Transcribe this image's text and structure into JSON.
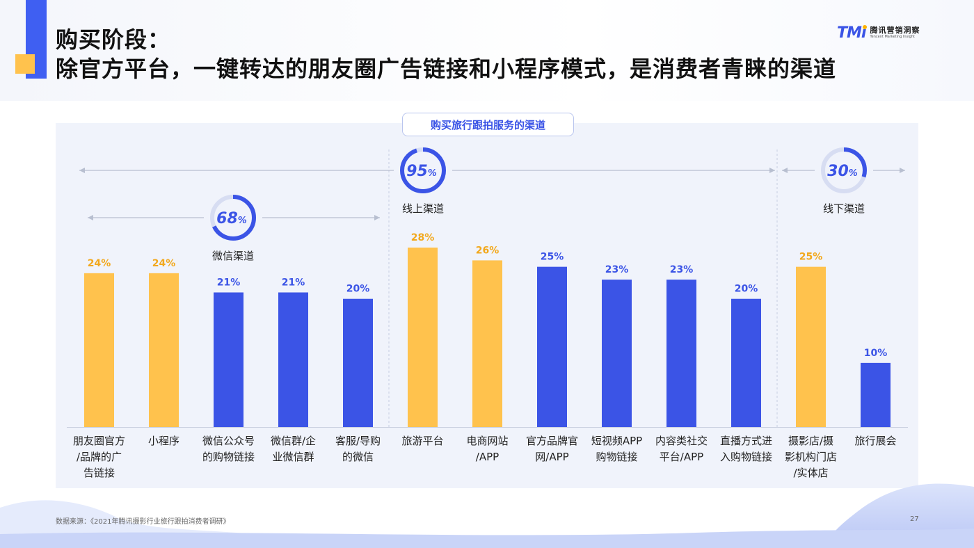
{
  "header": {
    "title_line1": "购买阶段：",
    "title_line2": "除官方平台，一键转达的朋友圈广告链接和小程序模式，是消费者青睐的渠道"
  },
  "logo": {
    "mark": "TMi",
    "name_cn": "腾讯营销洞察",
    "name_en": "Tencent Marketing Insight"
  },
  "chart_data": {
    "type": "bar",
    "title": "购买旅行跟拍服务的渠道",
    "categories": [
      "朋友圈官方/品牌的广告链接",
      "小程序",
      "微信公众号的购物链接",
      "微信群/企业微信群",
      "客服/导购的微信",
      "旅游平台",
      "电商网站/APP",
      "官方品牌官网/APP",
      "短视频APP购物链接",
      "内容类社交平台/APP",
      "直播方式进入购物链接",
      "摄影店/摄影机构门店/实体店",
      "旅行展会"
    ],
    "category_lines": [
      [
        "朋友圈官方",
        "/品牌的广",
        "告链接"
      ],
      [
        "小程序"
      ],
      [
        "微信公众号",
        "的购物链接"
      ],
      [
        "微信群/企",
        "业微信群"
      ],
      [
        "客服/导购",
        "的微信"
      ],
      [
        "旅游平台"
      ],
      [
        "电商网站",
        "/APP"
      ],
      [
        "官方品牌官",
        "网/APP"
      ],
      [
        "短视频APP",
        "购物链接"
      ],
      [
        "内容类社交",
        "平台/APP"
      ],
      [
        "直播方式进",
        "入购物链接"
      ],
      [
        "摄影店/摄",
        "影机构门店",
        "/实体店"
      ],
      [
        "旅行展会"
      ]
    ],
    "values": [
      24,
      24,
      21,
      21,
      20,
      28,
      26,
      25,
      23,
      23,
      20,
      25,
      10
    ],
    "value_labels": [
      "24%",
      "24%",
      "21%",
      "21%",
      "20%",
      "28%",
      "26%",
      "25%",
      "23%",
      "23%",
      "20%",
      "25%",
      "10%"
    ],
    "highlight": [
      true,
      true,
      false,
      false,
      false,
      true,
      true,
      false,
      false,
      false,
      false,
      true,
      false
    ],
    "ylim": [
      0,
      30
    ],
    "groups": [
      {
        "name": "微信渠道",
        "percent": 68,
        "percent_label": "68",
        "from": 0,
        "to": 4
      },
      {
        "name": "线上渠道",
        "percent": 95,
        "percent_label": "95",
        "from": 0,
        "to": 10
      },
      {
        "name": "线下渠道",
        "percent": 30,
        "percent_label": "30",
        "from": 11,
        "to": 12
      }
    ],
    "percent_sign": "%",
    "colors": {
      "highlight": "#ffc24d",
      "normal": "#3b54e6",
      "highlight_text": "#f2a81d",
      "normal_text": "#3b54e6"
    }
  },
  "footer": {
    "source": "数据来源：《2021年腾讯摄影行业旅行跟拍消费者调研》",
    "page": "27"
  }
}
